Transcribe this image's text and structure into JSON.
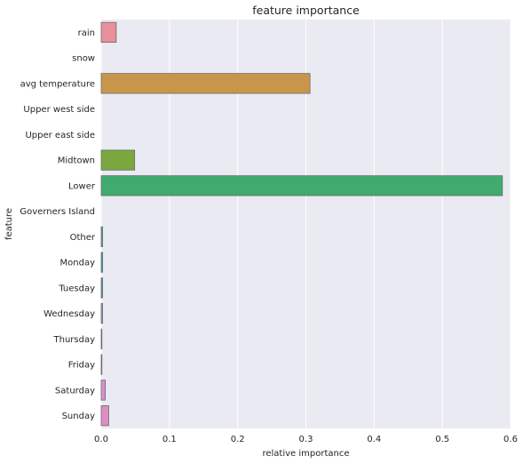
{
  "chart_data": {
    "type": "bar",
    "orientation": "horizontal",
    "title": "feature importance",
    "xlabel": "relative importance",
    "ylabel": "feature",
    "xlim": [
      0,
      0.6
    ],
    "xticks": [
      "0.0",
      "0.1",
      "0.2",
      "0.3",
      "0.4",
      "0.5",
      "0.6"
    ],
    "grid": true,
    "categories": [
      "rain",
      "snow",
      "avg temperature",
      "Upper west side",
      "Upper east side",
      "Midtown",
      "Lower",
      "Governers Island",
      "Other",
      "Monday",
      "Tuesday",
      "Wednesday",
      "Thursday",
      "Friday",
      "Saturday",
      "Sunday"
    ],
    "values": [
      0.022,
      0.0,
      0.306,
      0.0,
      0.0,
      0.049,
      0.588,
      0.0,
      0.002,
      0.002,
      0.002,
      0.002,
      0.001,
      0.001,
      0.006,
      0.011
    ],
    "colors": [
      "#e8909c",
      "#e0a070",
      "#c8964a",
      "#b8a040",
      "#a0a838",
      "#7aa83e",
      "#3fab6e",
      "#3aaa8a",
      "#3aa8a0",
      "#3aa5b0",
      "#3c9fc4",
      "#8a9ed8",
      "#a89ad8",
      "#c890d8",
      "#d890d0",
      "#e08cc4"
    ],
    "background": "#eaeaf2",
    "grid_color": "#ffffff"
  }
}
